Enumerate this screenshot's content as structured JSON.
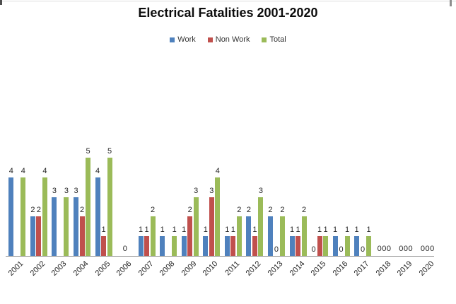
{
  "title": "Electrical Fatalities 2001-2020",
  "legend": [
    {
      "label": "Work",
      "color": "#4F81BD"
    },
    {
      "label": "Non Work",
      "color": "#C0504D"
    },
    {
      "label": "Total",
      "color": "#9BBB59"
    }
  ],
  "chart_data": {
    "type": "bar",
    "title": "Electrical Fatalities 2001-2020",
    "categories": [
      "2001",
      "2002",
      "2003",
      "2004",
      "2005",
      "2006",
      "2007",
      "2008",
      "2009",
      "2010",
      "2011",
      "2012",
      "2013",
      "2014",
      "2015",
      "2016",
      "2017",
      "2018",
      "2019",
      "2020"
    ],
    "series": [
      {
        "name": "Work",
        "color": "#4F81BD",
        "values": [
          4,
          2,
          3,
          3,
          4,
          0,
          1,
          1,
          1,
          1,
          1,
          2,
          2,
          1,
          0,
          1,
          1,
          0,
          0,
          0
        ]
      },
      {
        "name": "Non Work",
        "color": "#C0504D",
        "values": [
          0,
          2,
          0,
          2,
          1,
          0,
          1,
          0,
          2,
          3,
          1,
          1,
          0,
          1,
          1,
          0,
          0,
          0,
          0,
          0
        ]
      },
      {
        "name": "Total",
        "color": "#9BBB59",
        "values": [
          4,
          4,
          3,
          5,
          5,
          0,
          2,
          1,
          3,
          4,
          2,
          3,
          2,
          2,
          1,
          1,
          1,
          0,
          0,
          0
        ]
      }
    ],
    "data_labels": true,
    "hidden_labels": [
      [
        "2001",
        "Non Work"
      ],
      [
        "2003",
        "Non Work"
      ],
      [
        "2008",
        "Non Work"
      ]
    ],
    "zero_group_labels": {
      "2006": "0",
      "2018": "000",
      "2019": "000",
      "2020": "000"
    },
    "xlabel": "",
    "ylabel": "",
    "ylim": [
      0,
      10
    ],
    "gridlines": false,
    "y_axis_visible": false,
    "legend_position": "top",
    "colors": {
      "axis_line": "#9b9b9b",
      "label_text": "#262626",
      "title_text": "#0d0d0d"
    }
  }
}
